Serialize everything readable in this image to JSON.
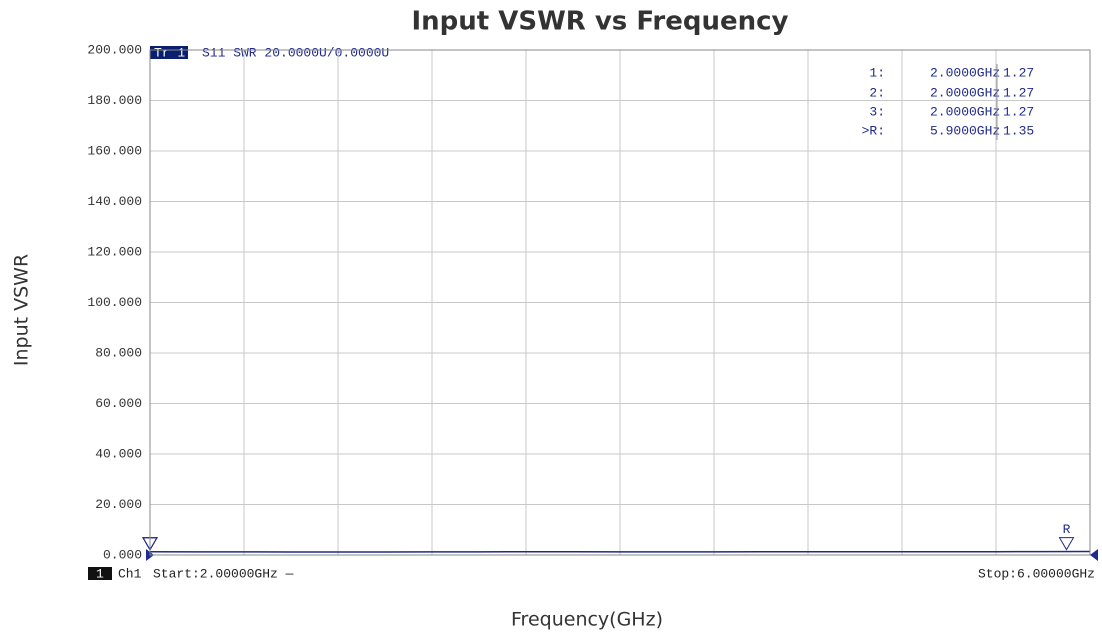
{
  "chart_data": {
    "type": "line",
    "title": "Input VSWR vs Frequency",
    "xlabel": "Frequency(GHz)",
    "ylabel": "Input VSWR",
    "trace_tag": "Tr 1",
    "trace_info": "S11 SWR 20.0000U/0.0000U",
    "channel_number": "1",
    "channel": "Ch1",
    "start_label": "Start:2.00000GHz —",
    "stop_label": "Stop:6.00000GHz",
    "x": [
      2.0,
      2.2,
      2.4,
      2.6,
      2.8,
      3.0,
      3.2,
      3.4,
      3.6,
      3.8,
      4.0,
      4.2,
      4.4,
      4.6,
      4.8,
      5.0,
      5.2,
      5.4,
      5.6,
      5.8,
      6.0
    ],
    "values": [
      1.27,
      1.25,
      1.22,
      1.2,
      1.18,
      1.2,
      1.23,
      1.26,
      1.28,
      1.27,
      1.25,
      1.24,
      1.26,
      1.29,
      1.31,
      1.3,
      1.28,
      1.27,
      1.3,
      1.35,
      1.38
    ],
    "color": "#1f2a8c",
    "xlim": [
      2,
      6
    ],
    "xticks": [
      2,
      2.4,
      2.8,
      3.2,
      3.6,
      4,
      4.4,
      4.8,
      5.2,
      5.6,
      6
    ],
    "ylim": [
      0,
      200
    ],
    "yticks": [
      {
        "value": 0,
        "label": "0.000"
      },
      {
        "value": 20,
        "label": "20.000"
      },
      {
        "value": 40,
        "label": "40.000"
      },
      {
        "value": 60,
        "label": "60.000"
      },
      {
        "value": 80,
        "label": "80.000"
      },
      {
        "value": 100,
        "label": "100.000"
      },
      {
        "value": 120,
        "label": "120.000"
      },
      {
        "value": 140,
        "label": "140.000"
      },
      {
        "value": 160,
        "label": "160.000"
      },
      {
        "value": 180,
        "label": "180.000"
      },
      {
        "value": 200,
        "label": "200.000"
      }
    ],
    "grid": true,
    "markers": [
      {
        "name": "1:",
        "x": {
          "value": 2,
          "label": "2.0000GHz"
        },
        "value": 1.27
      },
      {
        "name": "2:",
        "x": {
          "value": 2,
          "label": "2.0000GHz"
        },
        "value": 1.27
      },
      {
        "name": "3:",
        "x": {
          "value": 2,
          "label": "2.0000GHz"
        },
        "value": 1.27
      },
      {
        "name": ">R:",
        "x": {
          "value": 5.9,
          "label": "5.9000GHz"
        },
        "value": 1.35,
        "tag": "R"
      }
    ]
  }
}
